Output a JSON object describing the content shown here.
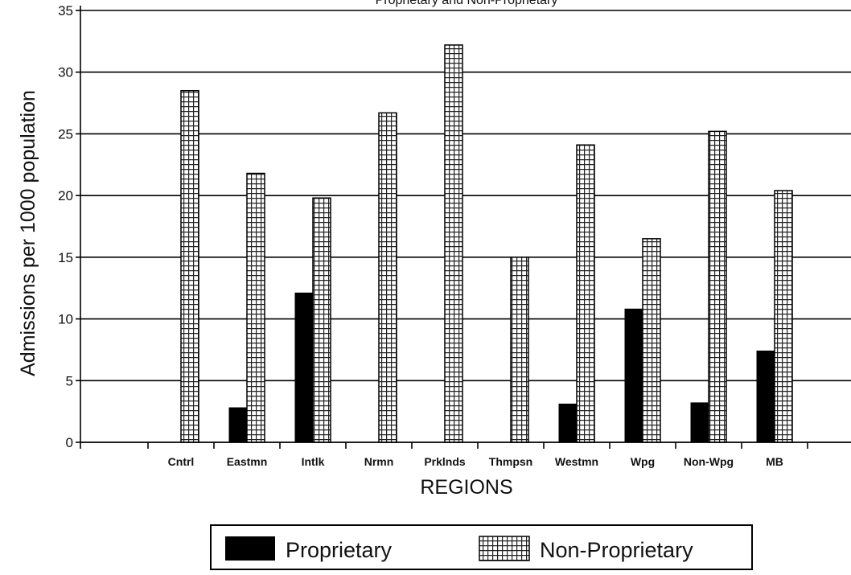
{
  "chart_data": {
    "type": "bar",
    "title": "Proprietary and Non-Proprietary",
    "xlabel": "REGIONS",
    "ylabel": "Admissions per 1000 population",
    "ylim": [
      0,
      35
    ],
    "yticks": [
      0,
      5,
      10,
      15,
      20,
      25,
      30,
      35
    ],
    "grid": true,
    "legend_position": "bottom",
    "categories": [
      "Cntrl",
      "Eastmn",
      "Intlk",
      "Nrmn",
      "Prklnds",
      "Thmpsn",
      "Westmn",
      "Wpg",
      "Non-Wpg",
      "MB"
    ],
    "series": [
      {
        "name": "Proprietary",
        "fill": "#000000",
        "values": [
          0,
          2.8,
          12.1,
          0,
          0,
          0,
          3.1,
          10.8,
          3.2,
          7.4
        ]
      },
      {
        "name": "Non-Proprietary",
        "fill": "grid-pattern",
        "values": [
          28.5,
          21.8,
          19.8,
          26.7,
          32.2,
          15.0,
          24.1,
          16.5,
          25.2,
          20.4
        ]
      }
    ]
  }
}
